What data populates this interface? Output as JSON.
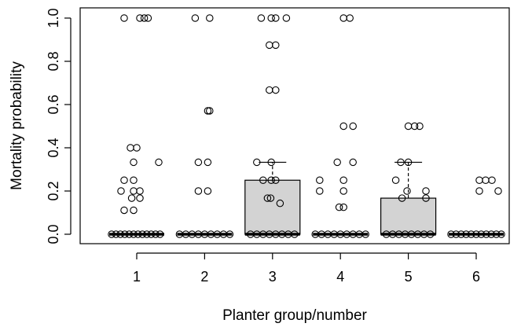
{
  "chart_data": {
    "type": "boxplot",
    "xlabel": "Planter group/number",
    "ylabel": "Mortality probability",
    "ylim": [
      0,
      1
    ],
    "yticks": [
      0.0,
      0.2,
      0.4,
      0.6,
      0.8,
      1.0
    ],
    "ytick_labels": [
      "0.0",
      "0.2",
      "0.4",
      "0.6",
      "0.8",
      "1.0"
    ],
    "categories": [
      "1",
      "2",
      "3",
      "4",
      "5",
      "6"
    ],
    "boxes": [
      {
        "q1": 0,
        "median": 0,
        "q3": 0,
        "whisker_low": 0,
        "whisker_high": 0
      },
      {
        "q1": 0,
        "median": 0,
        "q3": 0,
        "whisker_low": 0,
        "whisker_high": 0
      },
      {
        "q1": 0,
        "median": 0,
        "q3": 0.25,
        "whisker_low": 0,
        "whisker_high": 0.333
      },
      {
        "q1": 0,
        "median": 0,
        "q3": 0,
        "whisker_low": 0,
        "whisker_high": 0
      },
      {
        "q1": 0,
        "median": 0,
        "q3": 0.167,
        "whisker_low": 0,
        "whisker_high": 0.333
      },
      {
        "q1": 0,
        "median": 0,
        "q3": 0,
        "whisker_low": 0,
        "whisker_high": 0
      }
    ],
    "points": [
      [
        [
          -0.2,
          1
        ],
        [
          0.05,
          1
        ],
        [
          0.12,
          1
        ],
        [
          0.18,
          1
        ],
        [
          -0.1,
          0.4
        ],
        [
          0.0,
          0.4
        ],
        [
          -0.05,
          0.333
        ],
        [
          0.35,
          0.333
        ],
        [
          -0.2,
          0.25
        ],
        [
          -0.05,
          0.25
        ],
        [
          -0.25,
          0.2
        ],
        [
          -0.05,
          0.2
        ],
        [
          0.05,
          0.2
        ],
        [
          -0.08,
          0.167
        ],
        [
          0.05,
          0.167
        ],
        [
          -0.2,
          0.111
        ],
        [
          -0.05,
          0.111
        ],
        [
          -0.4,
          0
        ],
        [
          -0.33,
          0
        ],
        [
          -0.26,
          0
        ],
        [
          -0.19,
          0
        ],
        [
          -0.12,
          0
        ],
        [
          -0.05,
          0
        ],
        [
          0.02,
          0
        ],
        [
          0.09,
          0
        ],
        [
          0.16,
          0
        ],
        [
          0.23,
          0
        ],
        [
          0.3,
          0
        ],
        [
          0.37,
          0
        ]
      ],
      [
        [
          -0.15,
          1
        ],
        [
          0.08,
          1
        ],
        [
          0.05,
          0.571
        ],
        [
          0.08,
          0.571
        ],
        [
          -0.1,
          0.333
        ],
        [
          0.05,
          0.333
        ],
        [
          -0.1,
          0.2
        ],
        [
          0.05,
          0.2
        ],
        [
          -0.4,
          0
        ],
        [
          -0.3,
          0
        ],
        [
          -0.2,
          0
        ],
        [
          -0.1,
          0
        ],
        [
          0.0,
          0
        ],
        [
          0.1,
          0
        ],
        [
          0.2,
          0
        ],
        [
          0.3,
          0
        ],
        [
          0.4,
          0
        ]
      ],
      [
        [
          -0.18,
          1
        ],
        [
          -0.02,
          1
        ],
        [
          0.05,
          1
        ],
        [
          0.22,
          1
        ],
        [
          -0.05,
          0.875
        ],
        [
          0.05,
          0.875
        ],
        [
          -0.05,
          0.667
        ],
        [
          0.05,
          0.667
        ],
        [
          -0.25,
          0.333
        ],
        [
          -0.02,
          0.333
        ],
        [
          -0.15,
          0.25
        ],
        [
          -0.02,
          0.25
        ],
        [
          0.05,
          0.25
        ],
        [
          -0.08,
          0.167
        ],
        [
          -0.03,
          0.167
        ],
        [
          0.12,
          0.143
        ],
        [
          -0.35,
          0
        ],
        [
          -0.25,
          0
        ],
        [
          -0.15,
          0
        ],
        [
          -0.05,
          0
        ],
        [
          0.05,
          0
        ],
        [
          0.15,
          0
        ],
        [
          0.25,
          0
        ],
        [
          0.35,
          0
        ]
      ],
      [
        [
          0.05,
          1
        ],
        [
          0.15,
          1
        ],
        [
          0.05,
          0.5
        ],
        [
          0.2,
          0.5
        ],
        [
          -0.05,
          0.333
        ],
        [
          0.2,
          0.333
        ],
        [
          -0.33,
          0.25
        ],
        [
          0.05,
          0.25
        ],
        [
          -0.33,
          0.2
        ],
        [
          0.05,
          0.2
        ],
        [
          -0.02,
          0.125
        ],
        [
          0.05,
          0.125
        ],
        [
          -0.4,
          0
        ],
        [
          -0.3,
          0
        ],
        [
          -0.2,
          0
        ],
        [
          -0.1,
          0
        ],
        [
          0.0,
          0
        ],
        [
          0.1,
          0
        ],
        [
          0.2,
          0
        ],
        [
          0.3,
          0
        ],
        [
          0.4,
          0
        ]
      ],
      [
        [
          0.0,
          0.5
        ],
        [
          0.1,
          0.5
        ],
        [
          0.18,
          0.5
        ],
        [
          -0.12,
          0.333
        ],
        [
          0.0,
          0.333
        ],
        [
          -0.2,
          0.25
        ],
        [
          -0.02,
          0.2
        ],
        [
          0.28,
          0.2
        ],
        [
          -0.1,
          0.167
        ],
        [
          0.28,
          0.167
        ],
        [
          -0.35,
          0
        ],
        [
          -0.25,
          0
        ],
        [
          -0.15,
          0
        ],
        [
          -0.05,
          0
        ],
        [
          0.05,
          0
        ],
        [
          0.15,
          0
        ],
        [
          0.25,
          0
        ],
        [
          0.35,
          0
        ]
      ],
      [
        [
          0.05,
          0.25
        ],
        [
          0.15,
          0.25
        ],
        [
          0.25,
          0.25
        ],
        [
          0.05,
          0.2
        ],
        [
          0.35,
          0.2
        ],
        [
          -0.4,
          0
        ],
        [
          -0.32,
          0
        ],
        [
          -0.24,
          0
        ],
        [
          -0.16,
          0
        ],
        [
          -0.08,
          0
        ],
        [
          0.0,
          0
        ],
        [
          0.08,
          0
        ],
        [
          0.16,
          0
        ],
        [
          0.24,
          0
        ],
        [
          0.32,
          0
        ],
        [
          0.4,
          0
        ]
      ]
    ]
  }
}
